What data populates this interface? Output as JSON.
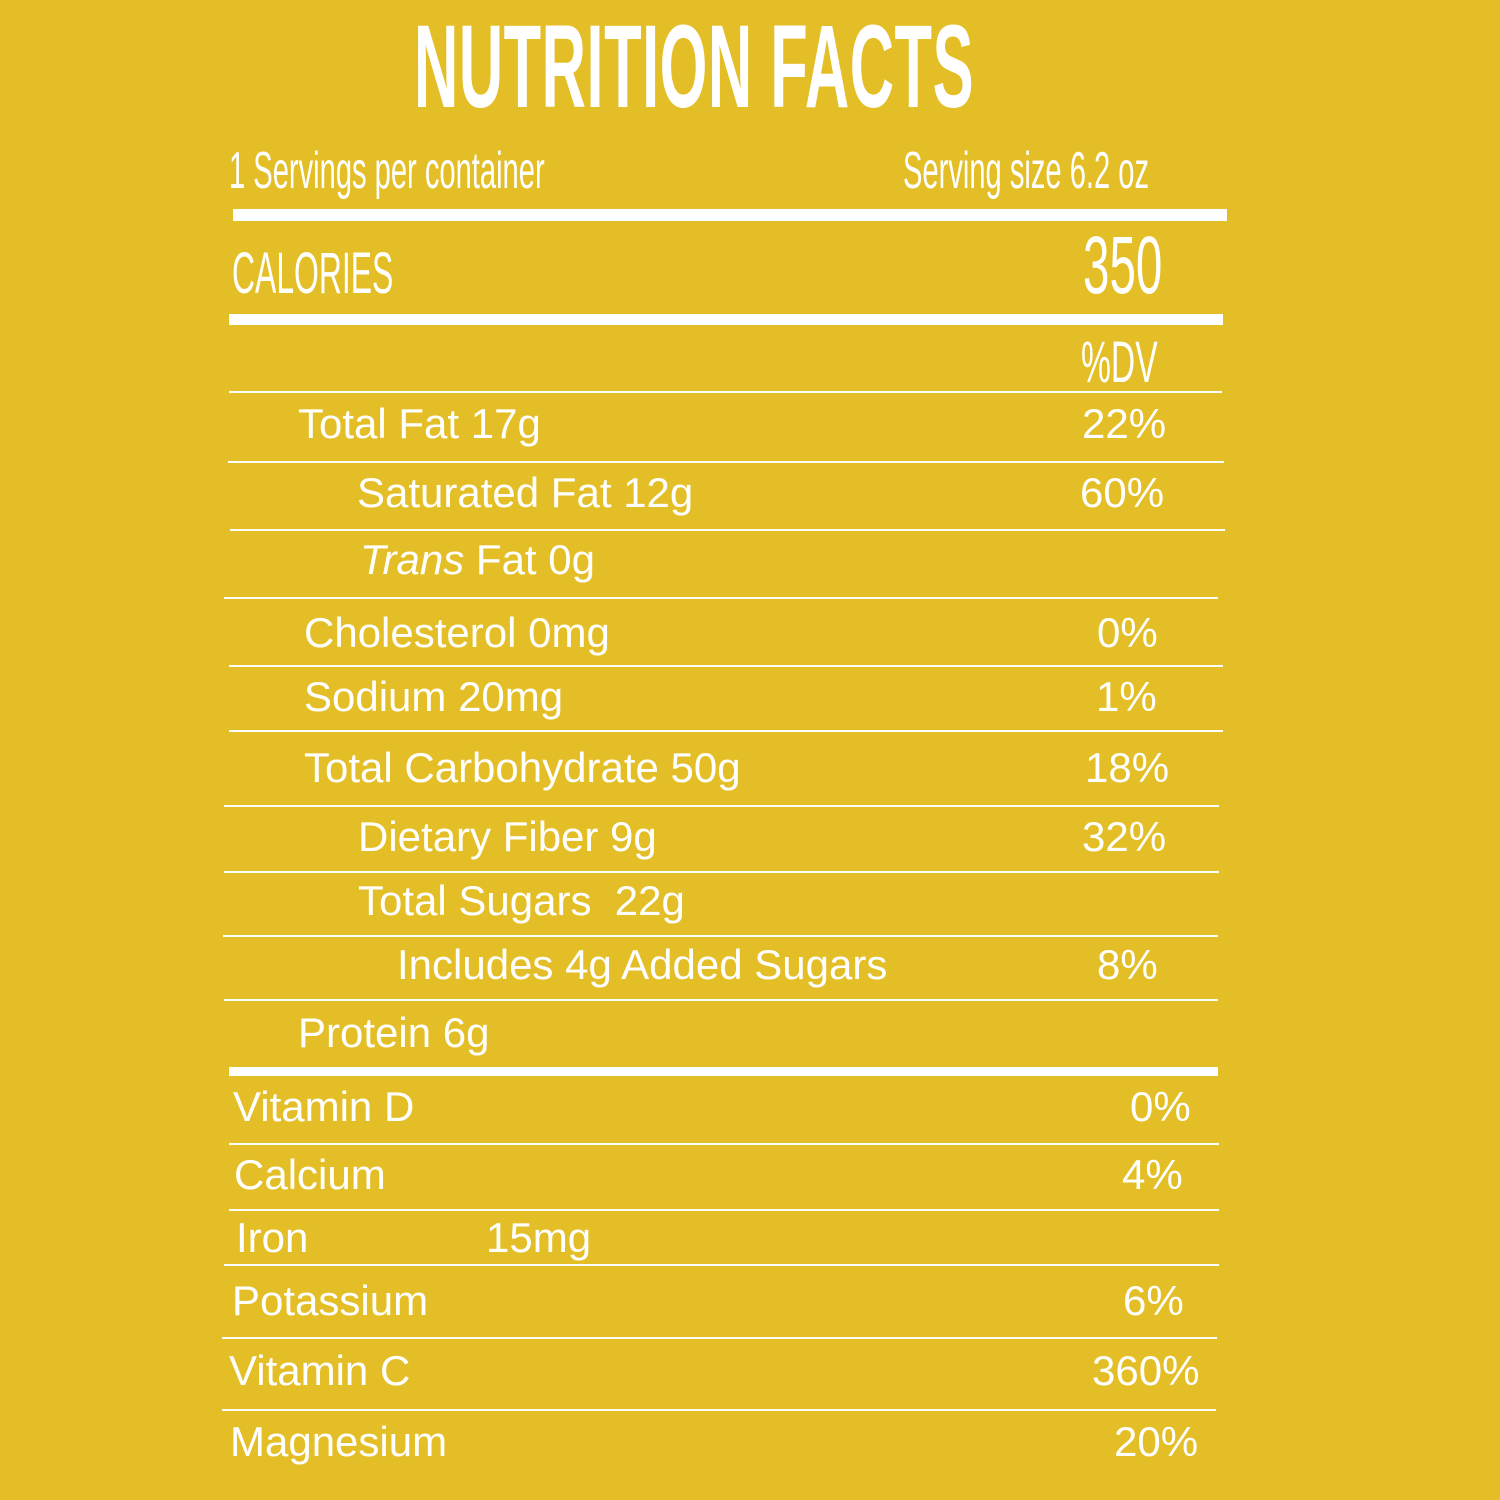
{
  "header": {
    "title": "NUTRITION FACTS",
    "servings": "1 Servings per container",
    "serving_size": "Serving size 6.2 oz"
  },
  "calories": {
    "label": "CALORIES",
    "value": "350"
  },
  "dv_header": "%DV",
  "nutrients": {
    "total_fat": {
      "label": "Total Fat 17g",
      "dv": "22%"
    },
    "saturated_fat": {
      "label": "Saturated Fat 12g",
      "dv": "60%"
    },
    "trans_fat": {
      "label_italic": "Trans",
      "label_rest": " Fat 0g"
    },
    "cholesterol": {
      "label": "Cholesterol 0mg",
      "dv": "0%"
    },
    "sodium": {
      "label": "Sodium 20mg",
      "dv": "1%"
    },
    "total_carbohydrate": {
      "label": "Total Carbohydrate 50g",
      "dv": "18%"
    },
    "dietary_fiber": {
      "label": "Dietary Fiber 9g",
      "dv": "32%"
    },
    "total_sugars": {
      "label": "Total Sugars  22g"
    },
    "added_sugars": {
      "label": "Includes 4g Added Sugars",
      "dv": "8%"
    },
    "protein": {
      "label": "Protein 6g"
    }
  },
  "vitamins": {
    "vitamin_d": {
      "label": "Vitamin D",
      "dv": "0%"
    },
    "calcium": {
      "label": "Calcium",
      "dv": "4%"
    },
    "iron": {
      "label": "Iron",
      "amount": "15mg"
    },
    "potassium": {
      "label": "Potassium",
      "dv": "6%"
    },
    "vitamin_c": {
      "label": "Vitamin C",
      "dv": "360%"
    },
    "magnesium": {
      "label": "Magnesium",
      "dv": "20%"
    }
  }
}
